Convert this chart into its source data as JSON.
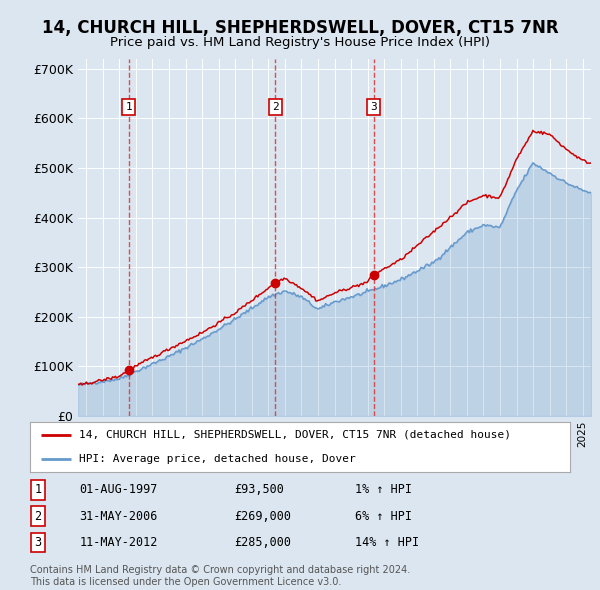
{
  "title": "14, CHURCH HILL, SHEPHERDSWELL, DOVER, CT15 7NR",
  "subtitle": "Price paid vs. HM Land Registry's House Price Index (HPI)",
  "background_color": "#dce6f0",
  "plot_bg_color": "#dce6f0",
  "red_line_color": "#cc0000",
  "blue_line_color": "#6699cc",
  "sale_marker_color": "#cc0000",
  "ylim": [
    0,
    720000
  ],
  "yticks": [
    0,
    100000,
    200000,
    300000,
    400000,
    500000,
    600000,
    700000
  ],
  "ytick_labels": [
    "£0",
    "£100K",
    "£200K",
    "£300K",
    "£400K",
    "£500K",
    "£600K",
    "£700K"
  ],
  "sales": [
    {
      "label": "1",
      "date_x": 1997.58,
      "price": 93500
    },
    {
      "label": "2",
      "date_x": 2006.41,
      "price": 269000
    },
    {
      "label": "3",
      "date_x": 2012.36,
      "price": 285000
    }
  ],
  "legend_entries": [
    "14, CHURCH HILL, SHEPHERDSWELL, DOVER, CT15 7NR (detached house)",
    "HPI: Average price, detached house, Dover"
  ],
  "table_data": [
    [
      "1",
      "01-AUG-1997",
      "£93,500",
      "1% ↑ HPI"
    ],
    [
      "2",
      "31-MAY-2006",
      "£269,000",
      "6% ↑ HPI"
    ],
    [
      "3",
      "11-MAY-2012",
      "£285,000",
      "14% ↑ HPI"
    ]
  ],
  "footer": "Contains HM Land Registry data © Crown copyright and database right 2024.\nThis data is licensed under the Open Government Licence v3.0.",
  "xmin": 1994.5,
  "xmax": 2025.5,
  "hpi_anchors_x": [
    1994.5,
    1995,
    1997,
    2000,
    2002,
    2004,
    2006,
    2007,
    2008,
    2009,
    2010,
    2012,
    2014,
    2016,
    2018,
    2019,
    2020,
    2021,
    2022,
    2023,
    2024,
    2025,
    2025.5
  ],
  "hpi_anchors_y": [
    62000,
    65000,
    75000,
    120000,
    155000,
    195000,
    240000,
    252000,
    240000,
    215000,
    230000,
    250000,
    275000,
    310000,
    370000,
    385000,
    380000,
    455000,
    510000,
    490000,
    470000,
    455000,
    450000
  ],
  "pp_anchors_x": [
    1994.5,
    1995,
    1997,
    1997.58,
    2000,
    2002,
    2004,
    2006,
    2006.41,
    2007,
    2008,
    2009,
    2010,
    2012,
    2012.36,
    2014,
    2016,
    2018,
    2019,
    2020,
    2021,
    2022,
    2023,
    2024,
    2025,
    2025.5
  ],
  "pp_anchors_y": [
    62000,
    65000,
    80000,
    93500,
    135000,
    168000,
    208000,
    258000,
    269000,
    278000,
    258000,
    232000,
    248000,
    270000,
    285000,
    315000,
    372000,
    430000,
    445000,
    440000,
    518000,
    575000,
    568000,
    538000,
    515000,
    510000
  ]
}
